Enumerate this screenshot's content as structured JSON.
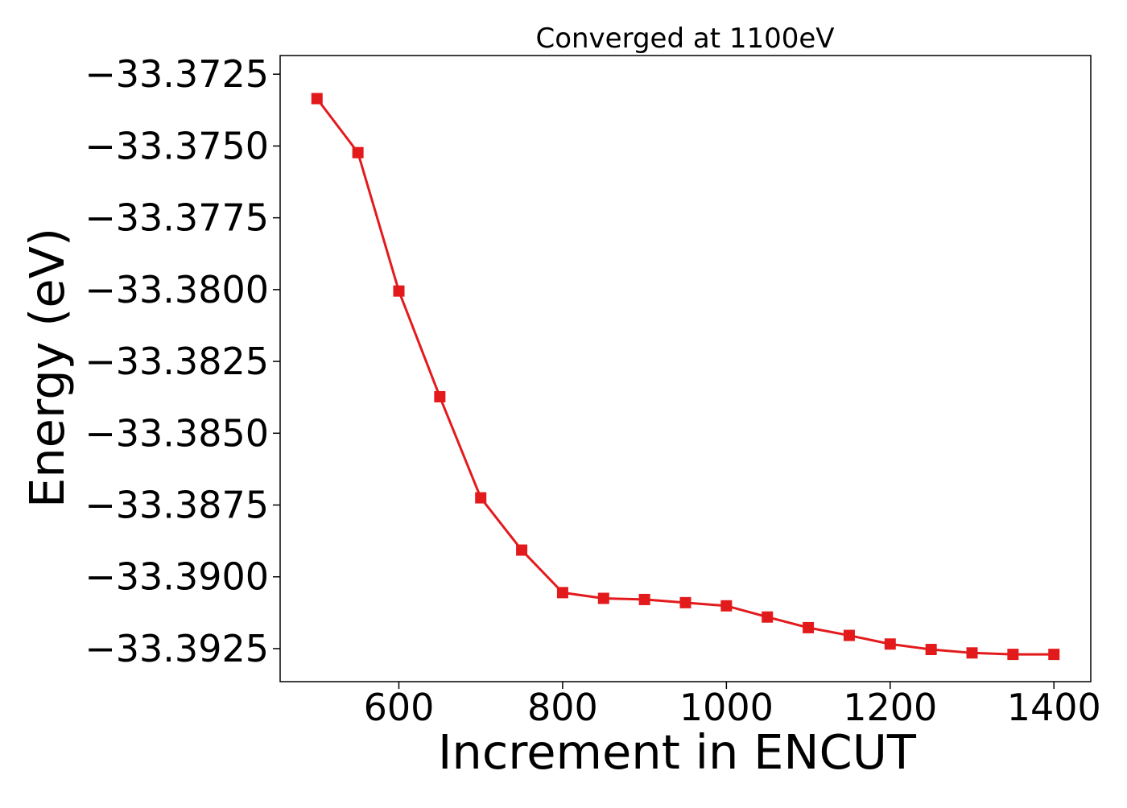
{
  "chart_data": {
    "type": "line",
    "title": "Converged at 1100eV",
    "xlabel": "Increment in ENCUT",
    "ylabel": "Energy (eV)",
    "xlim": [
      455,
      1445
    ],
    "ylim": [
      -33.39365,
      -33.37185
    ],
    "xticks": [
      600,
      800,
      1000,
      1200,
      1400
    ],
    "yticks": [
      -33.3725,
      -33.375,
      -33.3775,
      -33.38,
      -33.3825,
      -33.385,
      -33.3875,
      -33.39,
      -33.3925
    ],
    "ytick_labels": [
      "−33.3725",
      "−33.3750",
      "−33.3775",
      "−33.3800",
      "−33.3825",
      "−33.3850",
      "−33.3875",
      "−33.3900",
      "−33.3925"
    ],
    "grid": false,
    "legend": "none",
    "series": [
      {
        "color": "#e31a1c",
        "marker": "square",
        "x": [
          500,
          550,
          600,
          650,
          700,
          750,
          800,
          850,
          900,
          950,
          1000,
          1050,
          1100,
          1150,
          1200,
          1250,
          1300,
          1350,
          1400
        ],
        "values": [
          -33.37335,
          -33.37523,
          -33.38005,
          -33.38373,
          -33.38725,
          -33.38907,
          -33.39055,
          -33.39075,
          -33.39079,
          -33.3909,
          -33.39101,
          -33.3914,
          -33.39177,
          -33.39204,
          -33.39234,
          -33.39253,
          -33.39265,
          -33.3927,
          -33.3927
        ]
      }
    ]
  }
}
